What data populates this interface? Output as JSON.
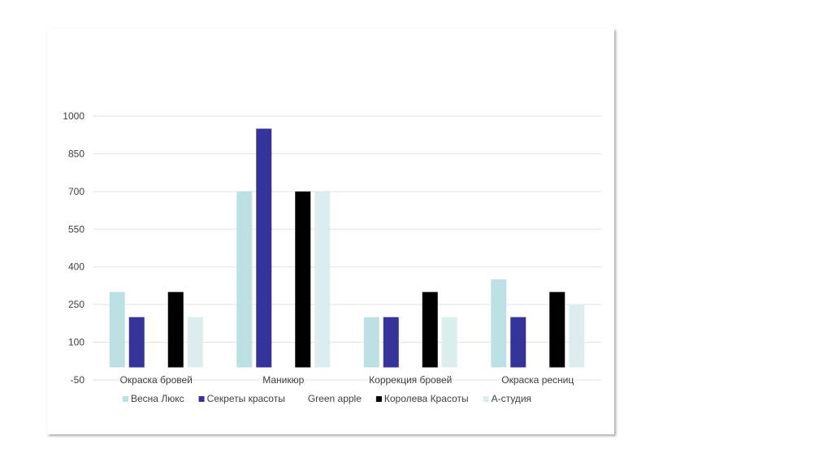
{
  "chart_data": {
    "type": "bar",
    "categories": [
      "Окраска бровей",
      "Маникюр",
      "Коррекция бровей",
      "Окраска ресниц"
    ],
    "series": [
      {
        "name": "Весна Люкс",
        "color": "#bde0e4",
        "values": [
          300,
          700,
          200,
          350
        ]
      },
      {
        "name": "Секреты красоты",
        "color": "#33339a",
        "values": [
          200,
          950,
          200,
          200
        ]
      },
      {
        "name": "Green apple",
        "color": "#ffffff",
        "values": [
          0,
          0,
          0,
          0
        ]
      },
      {
        "name": "Королева Красоты",
        "color": "#000000",
        "values": [
          300,
          700,
          300,
          300
        ]
      },
      {
        "name": "А-студия",
        "color": "#dcedf0",
        "values": [
          200,
          700,
          200,
          250
        ]
      }
    ],
    "yticks": [
      "1000",
      "850",
      "700",
      "550",
      "400",
      "250",
      "100",
      "-50"
    ],
    "ylim": [
      -50,
      1000
    ],
    "grid": true,
    "legend_position": "bottom"
  }
}
